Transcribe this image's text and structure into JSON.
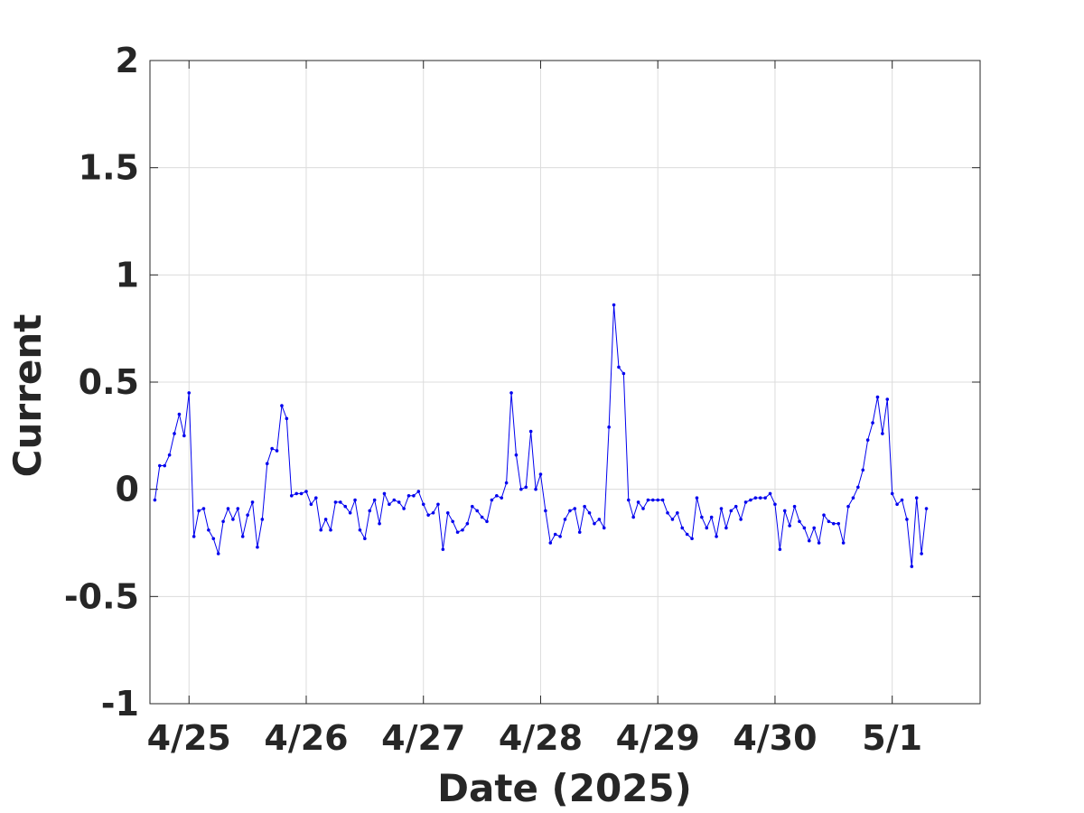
{
  "chart_data": {
    "type": "line",
    "xlabel": "Date (2025)",
    "ylabel": "Current",
    "ylim": [
      -1,
      2
    ],
    "x_range": [
      "2025-04-24 16:00",
      "2025-05-01 18:00"
    ],
    "grid": true,
    "y_ticks": [
      {
        "value": -1,
        "label": "-1"
      },
      {
        "value": -0.5,
        "label": "-0.5"
      },
      {
        "value": 0,
        "label": "0"
      },
      {
        "value": 0.5,
        "label": "0.5"
      },
      {
        "value": 1,
        "label": "1"
      },
      {
        "value": 1.5,
        "label": "1.5"
      },
      {
        "value": 2,
        "label": "2"
      }
    ],
    "x_ticks": [
      {
        "value": "2025-04-25",
        "label": "4/25"
      },
      {
        "value": "2025-04-26",
        "label": "4/26"
      },
      {
        "value": "2025-04-27",
        "label": "4/27"
      },
      {
        "value": "2025-04-28",
        "label": "4/28"
      },
      {
        "value": "2025-04-29",
        "label": "4/29"
      },
      {
        "value": "2025-04-30",
        "label": "4/30"
      },
      {
        "value": "2025-05-01",
        "label": "5/1"
      }
    ],
    "series": [
      {
        "color": "#0000ee",
        "marker": "dot",
        "x_start": "2025-04-24 17:00",
        "x_step_hours": 1,
        "values": [
          -0.05,
          0.11,
          0.11,
          0.16,
          0.26,
          0.35,
          0.25,
          0.45,
          -0.22,
          -0.1,
          -0.09,
          -0.19,
          -0.23,
          -0.3,
          -0.15,
          -0.09,
          -0.14,
          -0.09,
          -0.22,
          -0.12,
          -0.06,
          -0.27,
          -0.14,
          0.12,
          0.19,
          0.18,
          0.39,
          0.33,
          -0.03,
          -0.02,
          -0.02,
          -0.01,
          -0.07,
          -0.04,
          -0.19,
          -0.14,
          -0.19,
          -0.06,
          -0.06,
          -0.08,
          -0.11,
          -0.05,
          -0.19,
          -0.23,
          -0.1,
          -0.05,
          -0.16,
          -0.02,
          -0.07,
          -0.05,
          -0.06,
          -0.09,
          -0.03,
          -0.03,
          -0.01,
          -0.07,
          -0.12,
          -0.11,
          -0.07,
          -0.28,
          -0.11,
          -0.15,
          -0.2,
          -0.19,
          -0.16,
          -0.08,
          -0.1,
          -0.13,
          -0.15,
          -0.05,
          -0.03,
          -0.04,
          0.03,
          0.45,
          0.16,
          0.0,
          0.01,
          0.27,
          0.0,
          0.07,
          -0.1,
          -0.25,
          -0.21,
          -0.22,
          -0.14,
          -0.1,
          -0.09,
          -0.2,
          -0.08,
          -0.11,
          -0.16,
          -0.14,
          -0.18,
          0.29,
          0.86,
          0.57,
          0.54,
          -0.05,
          -0.13,
          -0.06,
          -0.09,
          -0.05,
          -0.05,
          -0.05,
          -0.05,
          -0.11,
          -0.14,
          -0.11,
          -0.18,
          -0.21,
          -0.23,
          -0.04,
          -0.13,
          -0.18,
          -0.13,
          -0.22,
          -0.09,
          -0.18,
          -0.1,
          -0.08,
          -0.14,
          -0.06,
          -0.05,
          -0.04,
          -0.04,
          -0.04,
          -0.02,
          -0.07,
          -0.28,
          -0.1,
          -0.17,
          -0.08,
          -0.15,
          -0.18,
          -0.24,
          -0.18,
          -0.25,
          -0.12,
          -0.15,
          -0.16,
          -0.16,
          -0.25,
          -0.08,
          -0.04,
          0.01,
          0.09,
          0.23,
          0.31,
          0.43,
          0.26,
          0.42,
          -0.02,
          -0.07,
          -0.05,
          -0.14,
          -0.36,
          -0.04,
          -0.3,
          -0.09
        ]
      }
    ]
  }
}
